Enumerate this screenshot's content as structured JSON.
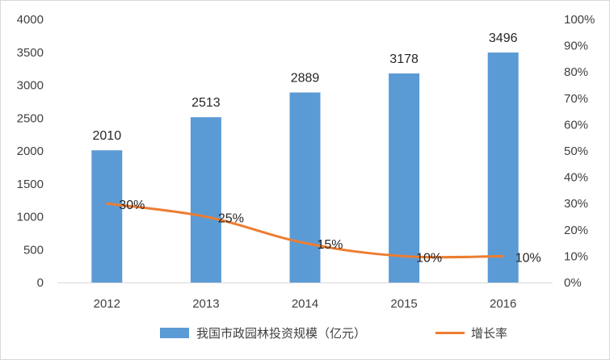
{
  "chart_data": {
    "type": "bar+line",
    "categories": [
      "2012",
      "2013",
      "2014",
      "2015",
      "2016"
    ],
    "series": [
      {
        "name": "我国市政园林投资规模（亿元）",
        "type": "bar",
        "axis": "left",
        "values": [
          2010,
          2513,
          2889,
          3178,
          3496
        ],
        "value_labels": [
          "2010",
          "2513",
          "2889",
          "3178",
          "3496"
        ],
        "color": "#5b9bd5"
      },
      {
        "name": "增长率",
        "type": "line",
        "axis": "right",
        "values": [
          0.3,
          0.25,
          0.15,
          0.1,
          0.1
        ],
        "value_labels": [
          "30%",
          "25%",
          "15%",
          "10%",
          "10%"
        ],
        "color": "#ed7d31"
      }
    ],
    "y_left": {
      "min": 0,
      "max": 4000,
      "ticks": [
        0,
        500,
        1000,
        1500,
        2000,
        2500,
        3000,
        3500,
        4000
      ],
      "tick_labels": [
        "0",
        "500",
        "1000",
        "1500",
        "2000",
        "2500",
        "3000",
        "3500",
        "4000"
      ]
    },
    "y_right": {
      "min": 0,
      "max": 1,
      "ticks": [
        0,
        0.1,
        0.2,
        0.3,
        0.4,
        0.5,
        0.6,
        0.7,
        0.8,
        0.9,
        1.0
      ],
      "tick_labels": [
        "0%",
        "10%",
        "20%",
        "30%",
        "40%",
        "50%",
        "60%",
        "70%",
        "80%",
        "90%",
        "100%"
      ]
    },
    "grid": false,
    "legend": "bottom",
    "title": "",
    "xlabel": "",
    "ylabel": ""
  }
}
